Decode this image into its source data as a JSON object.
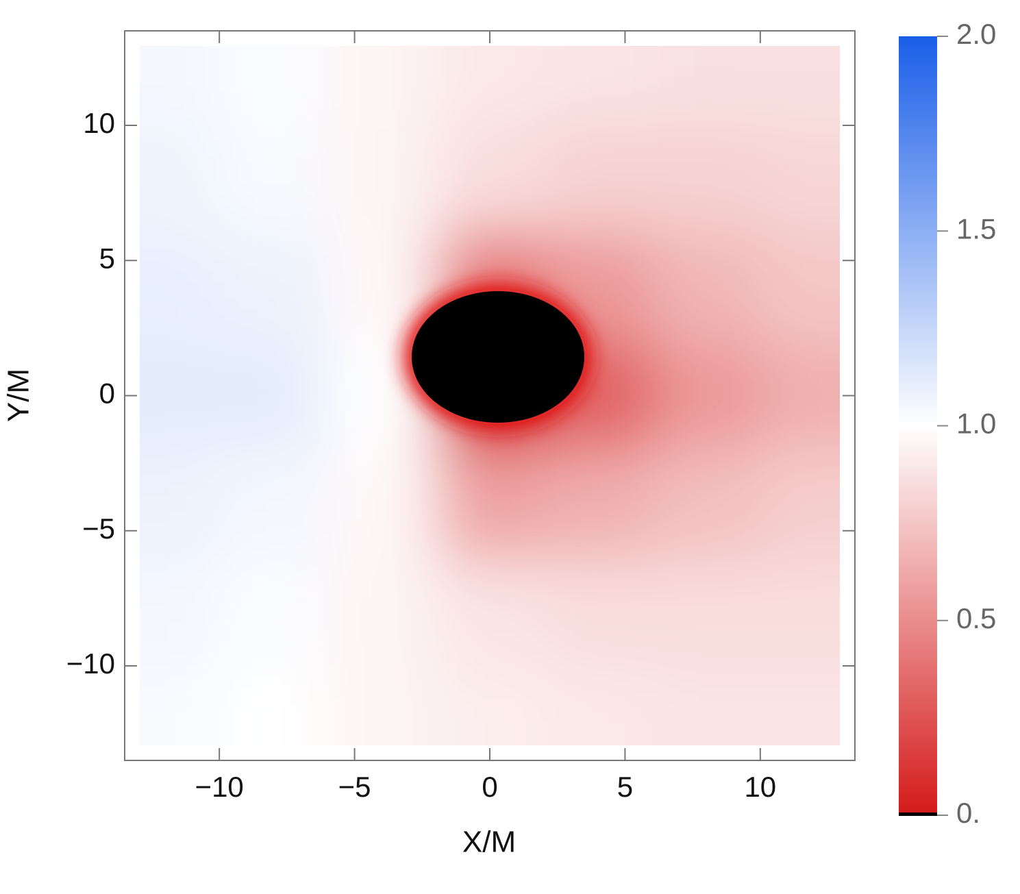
{
  "chart_data": {
    "type": "density",
    "xlabel": "X/M",
    "ylabel": "Y/M",
    "x": [
      -12,
      -8,
      -4,
      0,
      4,
      8,
      12
    ],
    "y": [
      12,
      8,
      4,
      0,
      -4,
      -8,
      -12
    ],
    "z": [
      [
        1.05,
        1.02,
        0.95,
        0.9,
        0.88,
        0.87,
        0.87
      ],
      [
        1.07,
        1.03,
        0.95,
        0.85,
        0.8,
        0.8,
        0.82
      ],
      [
        1.1,
        1.08,
        0.97,
        0.4,
        0.55,
        0.68,
        0.75
      ],
      [
        1.12,
        1.12,
        1.0,
        0,
        0.3,
        0.55,
        0.65
      ],
      [
        1.08,
        1.05,
        0.97,
        0.6,
        0.65,
        0.72,
        0.78
      ],
      [
        1.05,
        1.02,
        0.95,
        0.88,
        0.85,
        0.85,
        0.85
      ],
      [
        1.03,
        1.0,
        0.95,
        0.92,
        0.9,
        0.88,
        0.88
      ]
    ],
    "xlim": [
      -13.5,
      13.5
    ],
    "ylim": [
      -13.5,
      13.5
    ],
    "xticks": [
      {
        "value": -10,
        "label": "−10"
      },
      {
        "value": -5,
        "label": "−5"
      },
      0,
      5,
      10
    ],
    "yticks": [
      {
        "value": -10,
        "label": "−10"
      },
      {
        "value": -5,
        "label": "−5"
      },
      0,
      5,
      10
    ],
    "colorbar": {
      "lim": [
        0,
        2
      ],
      "colormap": [
        "#d41a1a",
        "#ffffff",
        "#1a5ee8"
      ],
      "ticks": [
        {
          "value": 0,
          "label": "0."
        },
        0.5,
        {
          "value": 1,
          "label": "1.0"
        },
        1.5,
        {
          "value": 2,
          "label": "2.0"
        }
      ]
    }
  }
}
